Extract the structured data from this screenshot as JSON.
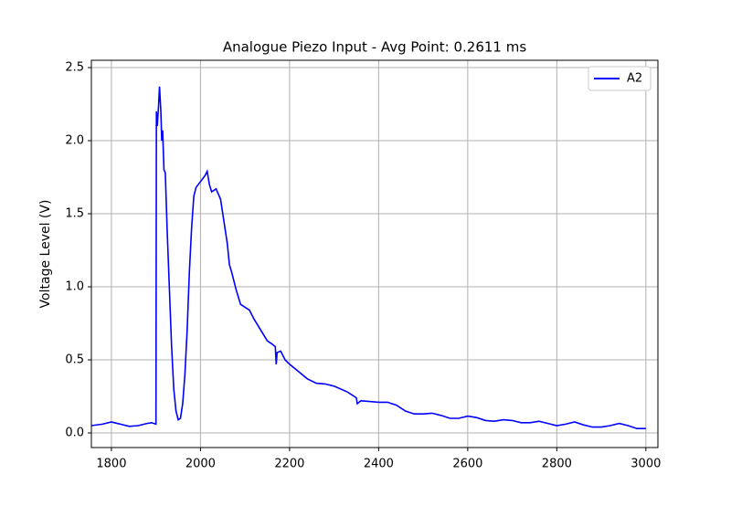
{
  "chart_data": {
    "type": "line",
    "title": "Analogue Piezo Input - Avg Point: 0.2611 ms",
    "y_label": "Voltage Level (V)",
    "x": [
      1755,
      1780,
      1800,
      1820,
      1840,
      1860,
      1880,
      1890,
      1900,
      1901,
      1903,
      1906,
      1908,
      1911,
      1913,
      1915,
      1918,
      1921,
      1925,
      1930,
      1935,
      1940,
      1945,
      1950,
      1955,
      1960,
      1965,
      1970,
      1975,
      1980,
      1985,
      1990,
      2000,
      2010,
      2015,
      2020,
      2025,
      2035,
      2045,
      2050,
      2060,
      2065,
      2070,
      2080,
      2090,
      2100,
      2110,
      2120,
      2130,
      2140,
      2150,
      2160,
      2168,
      2170,
      2172,
      2180,
      2190,
      2200,
      2220,
      2240,
      2260,
      2280,
      2300,
      2330,
      2350,
      2352,
      2360,
      2380,
      2400,
      2420,
      2440,
      2460,
      2480,
      2500,
      2520,
      2540,
      2560,
      2580,
      2600,
      2620,
      2640,
      2660,
      2680,
      2700,
      2720,
      2740,
      2760,
      2780,
      2800,
      2820,
      2840,
      2860,
      2880,
      2900,
      2920,
      2940,
      2960,
      2980,
      3000
    ],
    "series": [
      {
        "name": "A2",
        "color": "#0000ff",
        "values": [
          0.05,
          0.06,
          0.075,
          0.06,
          0.045,
          0.05,
          0.065,
          0.07,
          0.06,
          2.2,
          2.1,
          2.25,
          2.37,
          2.2,
          2.0,
          2.07,
          1.8,
          1.78,
          1.4,
          1.0,
          0.6,
          0.3,
          0.15,
          0.09,
          0.1,
          0.2,
          0.4,
          0.7,
          1.1,
          1.4,
          1.62,
          1.68,
          1.72,
          1.76,
          1.79,
          1.7,
          1.65,
          1.67,
          1.6,
          1.5,
          1.3,
          1.15,
          1.1,
          0.98,
          0.88,
          0.86,
          0.84,
          0.78,
          0.73,
          0.68,
          0.63,
          0.61,
          0.59,
          0.47,
          0.55,
          0.56,
          0.5,
          0.47,
          0.42,
          0.37,
          0.34,
          0.335,
          0.32,
          0.28,
          0.24,
          0.2,
          0.22,
          0.215,
          0.21,
          0.21,
          0.19,
          0.15,
          0.13,
          0.13,
          0.135,
          0.12,
          0.1,
          0.1,
          0.115,
          0.105,
          0.085,
          0.08,
          0.09,
          0.085,
          0.07,
          0.07,
          0.08,
          0.065,
          0.05,
          0.06,
          0.075,
          0.055,
          0.04,
          0.04,
          0.05,
          0.065,
          0.05,
          0.03,
          0.03
        ]
      }
    ],
    "xlim": [
      1755,
      3027
    ],
    "ylim": [
      -0.1,
      2.55
    ],
    "xticks": [
      1800,
      2000,
      2200,
      2400,
      2600,
      2800,
      3000
    ],
    "yticks": [
      {
        "value": 0,
        "label": "0.0"
      },
      0.5,
      {
        "value": 1,
        "label": "1.0"
      },
      1.5,
      {
        "value": 2,
        "label": "2.0"
      },
      2.5
    ],
    "grid": true,
    "legend": "upper-right"
  }
}
